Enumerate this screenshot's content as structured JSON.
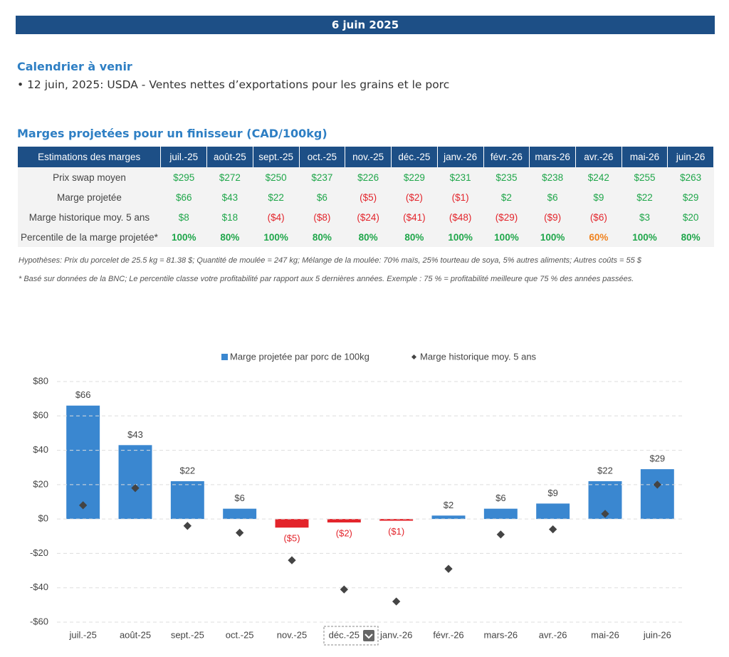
{
  "header": {
    "title": "6 juin 2025"
  },
  "calendar": {
    "title": "Calendrier à venir",
    "items": [
      "• 12 juin, 2025: USDA - Ventes nettes d’exportations pour les grains et le porc"
    ]
  },
  "table": {
    "title": "Marges projetées pour un finisseur (CAD/100kg)",
    "columns": [
      "Estimations des marges",
      "juil.-25",
      "août-25",
      "sept.-25",
      "oct.-25",
      "nov.-25",
      "déc.-25",
      "janv.-26",
      "févr.-26",
      "mars-26",
      "avr.-26",
      "mai-26",
      "juin-26"
    ],
    "rows": [
      {
        "label": "Prix swap moyen",
        "cells": [
          "$295",
          "$272",
          "$250",
          "$237",
          "$226",
          "$229",
          "$231",
          "$235",
          "$238",
          "$242",
          "$255",
          "$263"
        ]
      },
      {
        "label": "Marge projetée",
        "cells": [
          "$66",
          "$43",
          "$22",
          "$6",
          "($5)",
          "($2)",
          "($1)",
          "$2",
          "$6",
          "$9",
          "$22",
          "$29"
        ]
      },
      {
        "label": "Marge historique moy. 5 ans",
        "cells": [
          "$8",
          "$18",
          "($4)",
          "($8)",
          "($24)",
          "($41)",
          "($48)",
          "($29)",
          "($9)",
          "($6)",
          "$3",
          "$20"
        ]
      },
      {
        "label": "Percentile de la marge projetée*",
        "cells": [
          "100%",
          "80%",
          "100%",
          "80%",
          "80%",
          "80%",
          "100%",
          "100%",
          "100%",
          "60%",
          "100%",
          "80%"
        ]
      }
    ],
    "colors": {
      "positive": "#1fa64a",
      "negative": "#e3242b",
      "mid": "#f0821e"
    },
    "notes": [
      "Hypothèses: Prix du porcelet de 25.5 kg = 81.38 $; Quantité de moulée = 247 kg; Mélange de la moulée: 70% maïs, 25% tourteau de soya, 5% autres aliments; Autres coûts = 55 $",
      "* Basé sur données de la BNC; Le percentile classe votre profitabilité par rapport aux 5 dernières années. Exemple : 75 % = profitabilité meilleure que 75 % des années passées."
    ]
  },
  "chart_data": {
    "type": "bar",
    "categories": [
      "juil.-25",
      "août-25",
      "sept.-25",
      "oct.-25",
      "nov.-25",
      "déc.-25",
      "janv.-26",
      "févr.-26",
      "mars-26",
      "avr.-26",
      "mai-26",
      "juin-26"
    ],
    "series": [
      {
        "name": "Marge projetée par porc de 100kg",
        "type": "bar",
        "color": "#3a87d0",
        "negative_color": "#e3242b",
        "values": [
          66,
          43,
          22,
          6,
          -5,
          -2,
          -1,
          2,
          6,
          9,
          22,
          29
        ],
        "value_labels": [
          "$66",
          "$43",
          "$22",
          "$6",
          "($5)",
          "($2)",
          "($1)",
          "$2",
          "$6",
          "$9",
          "$22",
          "$29"
        ]
      },
      {
        "name": "Marge historique moy. 5 ans",
        "type": "scatter",
        "color": "#444444",
        "values": [
          8,
          18,
          -4,
          -8,
          -24,
          -41,
          -48,
          -29,
          -9,
          -6,
          3,
          20
        ]
      }
    ],
    "ylim": [
      -60,
      80
    ],
    "yticks": [
      {
        "value": -60,
        "label": "-$60"
      },
      {
        "value": -40,
        "label": "-$40"
      },
      {
        "value": -20,
        "label": "-$20"
      },
      {
        "value": 0,
        "label": "$0"
      },
      {
        "value": 20,
        "label": "$20"
      },
      {
        "value": 40,
        "label": "$40"
      },
      {
        "value": 60,
        "label": "$60"
      },
      {
        "value": 80,
        "label": "$80"
      }
    ],
    "grid": true,
    "legend": "top"
  }
}
